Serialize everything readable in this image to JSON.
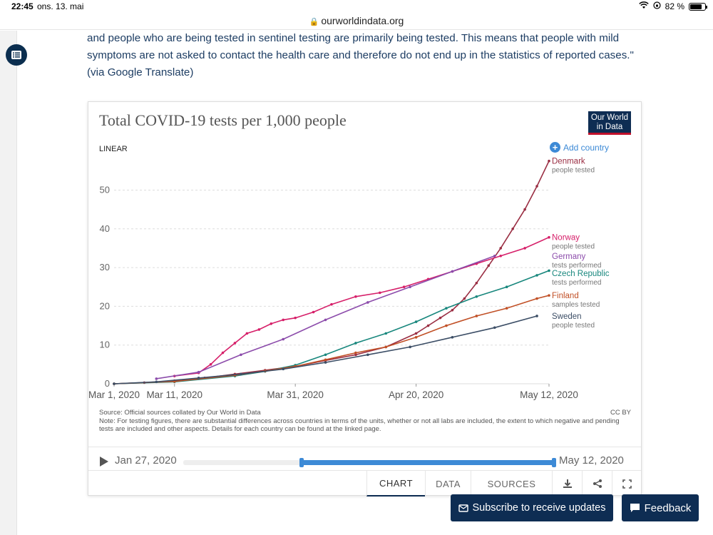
{
  "status_bar": {
    "time": "22:45",
    "date": "ons. 13. mai",
    "battery": "82 %"
  },
  "browser": {
    "url": "ourworldindata.org"
  },
  "article": {
    "line1": "and people who are being tested in sentinel testing are primarily being tested. This means that people with mild",
    "line2": "symptoms are not asked to contact the health care and therefore do not end up in the statistics of reported cases.\"",
    "line3": "(via Google Translate)"
  },
  "card": {
    "title": "Total COVID-19 tests per 1,000 people",
    "logo_line1": "Our World",
    "logo_line2": "in Data",
    "scale": "LINEAR",
    "add_country": "Add country",
    "source": "Source: Official sources collated by Our World in Data",
    "note": "Note: For testing figures, there are substantial differences across countries in terms of the units, whether or not all labs are included, the extent to which negative and pending tests are included and other aspects. Details for each country can be found at the linked page.",
    "license": "CC BY"
  },
  "timeline": {
    "start": "Jan 27, 2020",
    "end": "May 12, 2020",
    "range_start": 0.32,
    "range_end": 1.0
  },
  "controls": {
    "chart": "CHART",
    "data": "DATA",
    "sources": "SOURCES"
  },
  "buttons": {
    "subscribe": "Subscribe to receive updates",
    "feedback": "Feedback"
  },
  "chart_data": {
    "type": "line",
    "title": "Total COVID-19 tests per 1,000 people",
    "xlabel": "",
    "ylabel": "",
    "ylim": [
      0,
      58
    ],
    "yticks": [
      0,
      10,
      20,
      30,
      40,
      50
    ],
    "xlim_days": [
      0,
      72
    ],
    "xticks": [
      {
        "day": 0,
        "label": "Mar 1, 2020"
      },
      {
        "day": 10,
        "label": "Mar 11, 2020"
      },
      {
        "day": 30,
        "label": "Mar 31, 2020"
      },
      {
        "day": 50,
        "label": "Apr 20, 2020"
      },
      {
        "day": 72,
        "label": "May 12, 2020"
      }
    ],
    "series": [
      {
        "name": "Denmark",
        "sub": "people tested",
        "color": "#9a2e43",
        "points": [
          [
            0,
            0
          ],
          [
            5,
            0.3
          ],
          [
            10,
            0.8
          ],
          [
            15,
            1.5
          ],
          [
            20,
            2.5
          ],
          [
            25,
            3.5
          ],
          [
            30,
            4.5
          ],
          [
            35,
            6
          ],
          [
            40,
            7.5
          ],
          [
            45,
            9.5
          ],
          [
            50,
            13
          ],
          [
            52,
            15
          ],
          [
            54,
            17
          ],
          [
            56,
            19
          ],
          [
            58,
            22
          ],
          [
            60,
            26
          ],
          [
            62,
            30.5
          ],
          [
            64,
            35
          ],
          [
            66,
            40
          ],
          [
            68,
            45
          ],
          [
            70,
            51
          ],
          [
            72,
            57.5
          ]
        ]
      },
      {
        "name": "Norway",
        "sub": "people tested",
        "color": "#d61f69",
        "points": [
          [
            10,
            2
          ],
          [
            14,
            2.8
          ],
          [
            16,
            5
          ],
          [
            18,
            8
          ],
          [
            20,
            10.5
          ],
          [
            22,
            13
          ],
          [
            24,
            14
          ],
          [
            26,
            15.5
          ],
          [
            28,
            16.5
          ],
          [
            30,
            17
          ],
          [
            33,
            18.5
          ],
          [
            36,
            20.5
          ],
          [
            40,
            22.5
          ],
          [
            44,
            23.5
          ],
          [
            48,
            25
          ],
          [
            52,
            27
          ],
          [
            56,
            29
          ],
          [
            60,
            31
          ],
          [
            64,
            33
          ],
          [
            68,
            35
          ],
          [
            72,
            37.8
          ]
        ]
      },
      {
        "name": "Germany",
        "sub": "tests performed",
        "color": "#8c4cab",
        "points": [
          [
            7,
            1.3
          ],
          [
            14,
            3
          ],
          [
            21,
            7.5
          ],
          [
            28,
            11.5
          ],
          [
            35,
            16.5
          ],
          [
            42,
            21
          ],
          [
            49,
            25
          ],
          [
            56,
            29
          ],
          [
            63,
            33
          ]
        ]
      },
      {
        "name": "Czech Republic",
        "sub": "tests performed",
        "color": "#18877d",
        "points": [
          [
            0,
            0
          ],
          [
            10,
            0.5
          ],
          [
            20,
            2
          ],
          [
            25,
            3.2
          ],
          [
            30,
            4.8
          ],
          [
            35,
            7.5
          ],
          [
            40,
            10.5
          ],
          [
            45,
            13
          ],
          [
            50,
            16
          ],
          [
            55,
            19.5
          ],
          [
            60,
            22.5
          ],
          [
            65,
            25
          ],
          [
            70,
            28
          ],
          [
            72,
            29.2
          ]
        ]
      },
      {
        "name": "Finland",
        "sub": "samples tested",
        "color": "#c15026",
        "points": [
          [
            0,
            0
          ],
          [
            10,
            0.6
          ],
          [
            20,
            2.2
          ],
          [
            25,
            3.3
          ],
          [
            30,
            4.5
          ],
          [
            35,
            6.2
          ],
          [
            40,
            8
          ],
          [
            45,
            9.5
          ],
          [
            50,
            12
          ],
          [
            55,
            15
          ],
          [
            60,
            17.5
          ],
          [
            65,
            19.5
          ],
          [
            70,
            22
          ],
          [
            72,
            22.8
          ]
        ]
      },
      {
        "name": "Sweden",
        "sub": "people tested",
        "color": "#3c4e66",
        "points": [
          [
            0,
            0
          ],
          [
            7,
            0.5
          ],
          [
            14,
            1.5
          ],
          [
            21,
            2.5
          ],
          [
            28,
            3.8
          ],
          [
            35,
            5.5
          ],
          [
            42,
            7.5
          ],
          [
            49,
            9.5
          ],
          [
            56,
            12
          ],
          [
            63,
            14.5
          ],
          [
            70,
            17.5
          ]
        ]
      }
    ]
  }
}
